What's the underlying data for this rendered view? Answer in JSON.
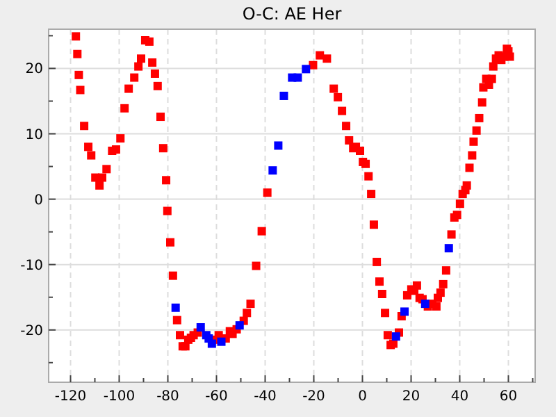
{
  "chart_data": {
    "type": "scatter",
    "title": "O-C: AE Her",
    "marker": "square",
    "grid": true,
    "xlim": [
      -129,
      71
    ],
    "ylim": [
      -28,
      26
    ],
    "xticks": [
      -120,
      -100,
      -80,
      -60,
      -40,
      -20,
      0,
      20,
      40,
      60,
      {
        "value": -110,
        "label": null
      },
      {
        "value": -90,
        "label": null
      },
      {
        "value": -70,
        "label": null
      },
      {
        "value": -50,
        "label": null
      },
      {
        "value": -30,
        "label": null
      },
      {
        "value": -10,
        "label": null
      },
      {
        "value": 10,
        "label": null
      },
      {
        "value": 30,
        "label": null
      },
      {
        "value": 50,
        "label": null
      },
      {
        "value": 70,
        "label": null
      }
    ],
    "yticks": [
      -20,
      -10,
      0,
      10,
      20,
      {
        "value": -25,
        "label": null
      },
      {
        "value": -15,
        "label": null
      },
      {
        "value": -5,
        "label": null
      },
      {
        "value": 5,
        "label": null
      },
      {
        "value": 15,
        "label": null
      },
      {
        "value": 25,
        "label": null
      }
    ],
    "series": [
      {
        "color": "#ff0000",
        "x": [
          -117.8,
          -117.2,
          -116.6,
          -116,
          -114.4,
          -112.7,
          -111.5,
          -109.8,
          -108.1,
          -107,
          -105.2,
          -102.9,
          -101.3,
          -99.5,
          -97.8,
          -96.1,
          -93.8,
          -92.1,
          -91,
          -89.3,
          -87.6,
          -86.4,
          -85.3,
          -84.2,
          -83,
          -81.9,
          -80.7,
          -80.2,
          -79,
          -77.9,
          -76.2,
          -75,
          -73.9,
          -72.8,
          -71.6,
          -70.5,
          -69.4,
          -67.7,
          -60.2,
          -59.1,
          -56.2,
          -54.5,
          -53.4,
          -51.7,
          -48.8,
          -47.5,
          -46,
          -43.7,
          -41.4,
          -39.1,
          -20.3,
          -17.5,
          -14.6,
          -11.8,
          -10.1,
          -8.4,
          -6.7,
          -5.5,
          -3.8,
          -2.7,
          -1,
          0.2,
          1.3,
          2.5,
          3.6,
          4.7,
          5.9,
          7,
          8.1,
          9.3,
          10.4,
          11.6,
          12.7,
          15,
          16.1,
          18.4,
          20.1,
          21.3,
          22.4,
          23.5,
          24.7,
          26.9,
          28.7,
          30.4,
          31,
          32.1,
          33.2,
          34.4,
          36.6,
          37.8,
          38.9,
          40.1,
          41.2,
          42.3,
          42.9,
          44,
          45.1,
          45.7,
          46.9,
          48,
          49.2,
          49.7,
          50.9,
          52,
          53.2,
          53.8,
          54.9,
          56,
          57.1,
          58.3,
          59.4,
          60,
          60.6
        ],
        "values": [
          24.9,
          22.2,
          19,
          16.7,
          11.2,
          8,
          6.7,
          3.3,
          2.1,
          3.3,
          4.6,
          7.4,
          7.6,
          9.3,
          13.9,
          16.9,
          18.6,
          20.3,
          21.5,
          24.3,
          24.1,
          20.9,
          19.2,
          17.3,
          12.6,
          7.8,
          2.9,
          -1.8,
          -6.6,
          -11.7,
          -18.5,
          -20.8,
          -22.5,
          -22.5,
          -21.5,
          -21.2,
          -20.8,
          -20.4,
          -21.5,
          -20.8,
          -21.3,
          -20.2,
          -20.6,
          -19.9,
          -18.6,
          -17.4,
          -16,
          -10.2,
          -4.9,
          1,
          20.5,
          22,
          21.5,
          16.9,
          15.6,
          13.5,
          11.2,
          9,
          7.8,
          8,
          7.4,
          5.7,
          5.4,
          3.5,
          0.8,
          -3.9,
          -9.6,
          -12.6,
          -14.5,
          -17.4,
          -20.8,
          -22.3,
          -22.1,
          -20.4,
          -17.9,
          -14.7,
          -13.8,
          -14,
          -13.2,
          -15.1,
          -15.3,
          -16.4,
          -16,
          -16.4,
          -15.1,
          -14.3,
          -13,
          -10.9,
          -5.4,
          -2.8,
          -2.4,
          -0.7,
          0.8,
          1.4,
          2.1,
          4.8,
          6.7,
          8.8,
          10.5,
          12.4,
          14.8,
          17.1,
          18.4,
          17.5,
          18.4,
          20.3,
          21.5,
          22,
          21.3,
          21.8,
          23,
          22.6,
          21.8
        ]
      },
      {
        "color": "#0000ff",
        "x": [
          -76.8,
          -66.5,
          -64.2,
          -63.2,
          -61.9,
          -58,
          -50.5,
          -36.9,
          -34.6,
          -32.3,
          -28.9,
          -26.6,
          -23.2,
          13.8,
          17.3,
          25.8,
          35.5
        ],
        "values": [
          -16.6,
          -19.6,
          -20.8,
          -21.3,
          -22.1,
          -21.8,
          -19.3,
          4.4,
          8.2,
          15.8,
          18.6,
          18.6,
          19.9,
          -21,
          -17.2,
          -16,
          -7.5
        ]
      }
    ]
  }
}
